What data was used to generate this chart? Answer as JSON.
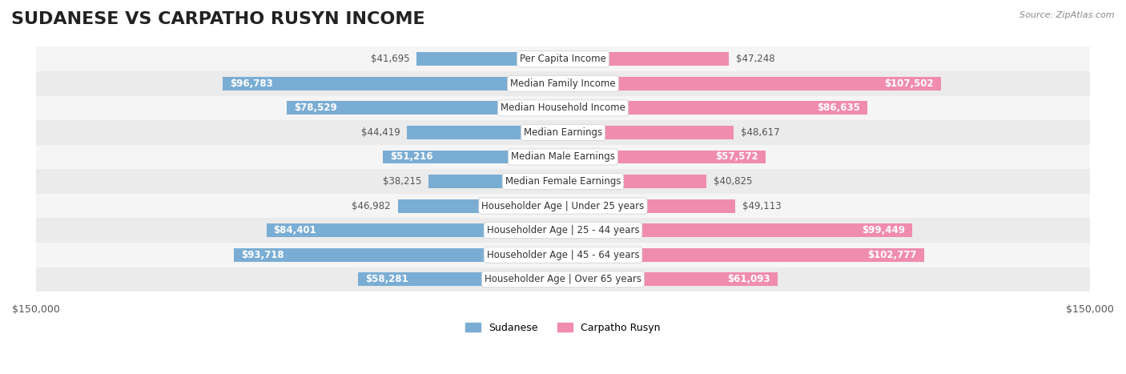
{
  "title": "SUDANESE VS CARPATHO RUSYN INCOME",
  "source": "Source: ZipAtlas.com",
  "categories": [
    "Per Capita Income",
    "Median Family Income",
    "Median Household Income",
    "Median Earnings",
    "Median Male Earnings",
    "Median Female Earnings",
    "Householder Age | Under 25 years",
    "Householder Age | 25 - 44 years",
    "Householder Age | 45 - 64 years",
    "Householder Age | Over 65 years"
  ],
  "sudanese_values": [
    41695,
    96783,
    78529,
    44419,
    51216,
    38215,
    46982,
    84401,
    93718,
    58281
  ],
  "carpatho_values": [
    47248,
    107502,
    86635,
    48617,
    57572,
    40825,
    49113,
    99449,
    102777,
    61093
  ],
  "sudanese_labels": [
    "$41,695",
    "$96,783",
    "$78,529",
    "$44,419",
    "$51,216",
    "$38,215",
    "$46,982",
    "$84,401",
    "$93,718",
    "$58,281"
  ],
  "carpatho_labels": [
    "$47,248",
    "$107,502",
    "$86,635",
    "$48,617",
    "$57,572",
    "$40,825",
    "$49,113",
    "$99,449",
    "$102,777",
    "$61,093"
  ],
  "sudanese_color": "#7aadd4",
  "carpatho_color": "#f08cad",
  "sudanese_color_dark": "#6b9dc4",
  "carpatho_color_dark": "#e07c9d",
  "max_value": 150000,
  "background_color": "#ffffff",
  "row_bg_color": "#f0f0f0",
  "row_alt_color": "#ffffff",
  "title_fontsize": 16,
  "label_fontsize": 9,
  "legend_label_sudanese": "Sudanese",
  "legend_label_carpatho": "Carpatho Rusyn"
}
